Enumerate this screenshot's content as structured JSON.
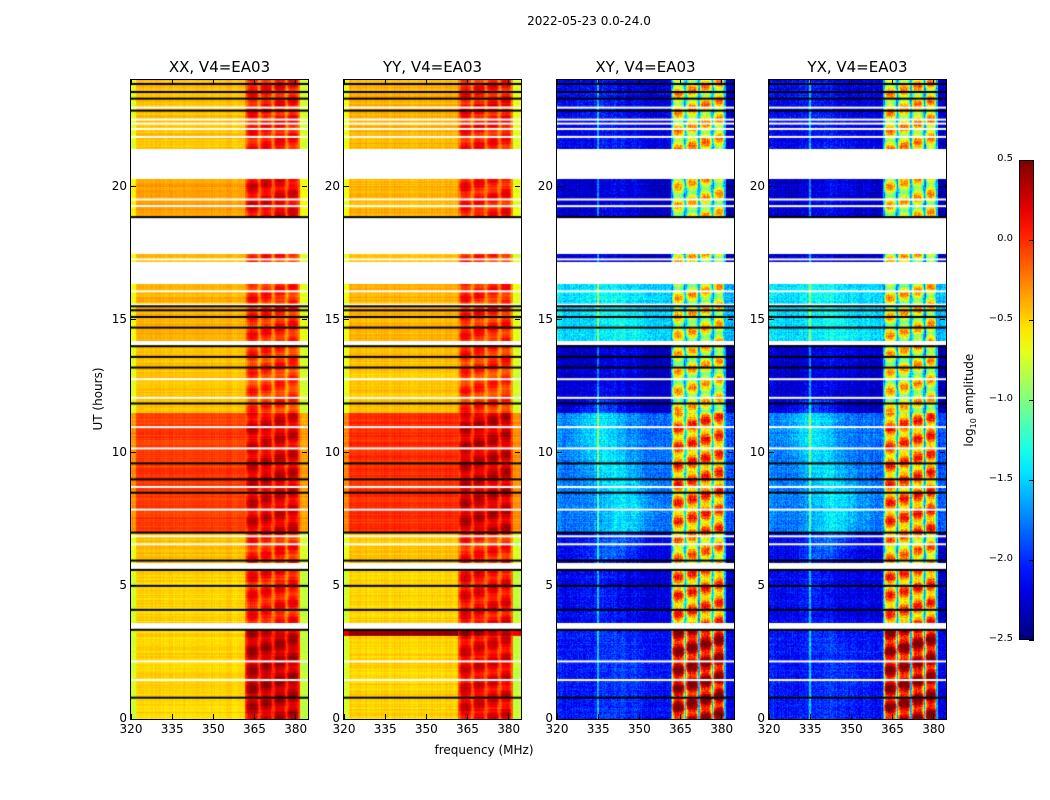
{
  "chart_data": {
    "type": "heatmap",
    "title": "2022-05-23 0.0-24.0",
    "xlabel": "frequency (MHz)",
    "ylabel": "UT (hours)",
    "xlim": [
      320,
      384.5
    ],
    "ylim": [
      0,
      24
    ],
    "x_ticks": [
      "320",
      "335",
      "350",
      "365",
      "380"
    ],
    "x_tick_values": [
      320,
      335,
      350,
      365,
      380
    ],
    "y_ticks": [
      "0",
      "5",
      "10",
      "15",
      "20"
    ],
    "y_tick_values": [
      0,
      5,
      10,
      15,
      20
    ],
    "colorbar": {
      "label_main": "log",
      "label_sub": "10",
      "label_rest": " amplitude",
      "range": [
        -2.5,
        0.5
      ],
      "ticks": [
        "0.5",
        "0.0",
        "−0.5",
        "−1.0",
        "−1.5",
        "−2.0",
        "−2.5"
      ],
      "tick_values": [
        0.5,
        0.0,
        -0.5,
        -1.0,
        -1.5,
        -2.0,
        -2.5
      ],
      "colormap": "jet"
    },
    "gaps_hours": [
      [
        3.35,
        3.6
      ],
      [
        5.65,
        5.85
      ],
      [
        14.05,
        14.2
      ],
      [
        16.35,
        17.15
      ],
      [
        17.45,
        18.85
      ],
      [
        20.3,
        21.4
      ]
    ],
    "flagged_black_lines_hours": [
      0.8,
      3.35,
      4.1,
      5.0,
      5.6,
      5.95,
      7.0,
      8.5,
      9.0,
      9.6,
      11.85,
      13.2,
      13.6,
      14.0,
      14.7,
      15.1,
      15.35,
      15.5,
      18.85,
      22.85,
      23.3,
      23.55,
      23.85
    ],
    "flagged_white_lines_hours": [
      1.5,
      2.2,
      6.6,
      6.9,
      7.9,
      8.75,
      10.2,
      11.0,
      12.1,
      12.8,
      15.6,
      16.1,
      17.3,
      19.3,
      19.55,
      21.9,
      22.2,
      22.4,
      22.55,
      23.0
    ],
    "high_band_channels_mhz": [
      [
        362,
        366.5
      ],
      [
        367,
        371.5
      ],
      [
        372,
        376.5
      ],
      [
        377,
        381
      ]
    ],
    "panels": [
      {
        "title": "XX, V4=EA03",
        "kind": "auto",
        "bands": [
          {
            "t": [
              0,
              3.35
            ],
            "low": -0.5,
            "high": 0.35
          },
          {
            "t": [
              3.6,
              5.65
            ],
            "low": -0.5,
            "high": 0.1
          },
          {
            "t": [
              5.85,
              7.0
            ],
            "low": -0.45,
            "high": 0.05
          },
          {
            "t": [
              7.0,
              11.5
            ],
            "low": -0.05,
            "high": 0.25
          },
          {
            "t": [
              11.5,
              14.05
            ],
            "low": -0.45,
            "high": 0.0
          },
          {
            "t": [
              14.2,
              16.35
            ],
            "low": -0.4,
            "high": 0.05
          },
          {
            "t": [
              17.15,
              17.45
            ],
            "low": -0.45,
            "high": 0.0
          },
          {
            "t": [
              18.85,
              20.3
            ],
            "low": -0.35,
            "high": 0.2
          },
          {
            "t": [
              21.4,
              24
            ],
            "low": -0.45,
            "high": 0.1
          }
        ]
      },
      {
        "title": "YY, V4=EA03",
        "kind": "auto",
        "bands": [
          {
            "t": [
              0,
              3.1
            ],
            "low": -0.5,
            "high": 0.2
          },
          {
            "t": [
              3.1,
              3.35
            ],
            "low": 0.45,
            "high": 0.45
          },
          {
            "t": [
              3.6,
              5.65
            ],
            "low": -0.5,
            "high": 0.15
          },
          {
            "t": [
              5.85,
              7.0
            ],
            "low": -0.45,
            "high": 0.05
          },
          {
            "t": [
              7.0,
              11.5
            ],
            "low": 0.0,
            "high": 0.3
          },
          {
            "t": [
              11.5,
              14.05
            ],
            "low": -0.45,
            "high": 0.0
          },
          {
            "t": [
              14.2,
              16.35
            ],
            "low": -0.4,
            "high": 0.05
          },
          {
            "t": [
              17.15,
              17.45
            ],
            "low": -0.45,
            "high": 0.0
          },
          {
            "t": [
              18.85,
              20.3
            ],
            "low": -0.4,
            "high": 0.1
          },
          {
            "t": [
              21.4,
              24
            ],
            "low": -0.4,
            "high": 0.1
          }
        ]
      },
      {
        "title": "XY, V4=EA03",
        "kind": "cross",
        "bands": [
          {
            "t": [
              0,
              3.35
            ],
            "low": -2.1,
            "high": 0.35
          },
          {
            "t": [
              3.6,
              5.65
            ],
            "low": -2.2,
            "high": -0.2
          },
          {
            "t": [
              5.85,
              7.0
            ],
            "low": -2.2,
            "high": -0.4
          },
          {
            "t": [
              7.0,
              11.5
            ],
            "low": -1.8,
            "high": -0.2
          },
          {
            "t": [
              11.5,
              14.05
            ],
            "low": -2.3,
            "high": -0.6
          },
          {
            "t": [
              14.2,
              16.35
            ],
            "low": -1.5,
            "high": -0.6
          },
          {
            "t": [
              17.15,
              17.45
            ],
            "low": -2.3,
            "high": -0.6
          },
          {
            "t": [
              18.85,
              20.3
            ],
            "low": -2.3,
            "high": -0.6
          },
          {
            "t": [
              21.4,
              24
            ],
            "low": -2.2,
            "high": -0.5
          }
        ]
      },
      {
        "title": "YX, V4=EA03",
        "kind": "cross",
        "bands": [
          {
            "t": [
              0,
              3.35
            ],
            "low": -2.1,
            "high": 0.35
          },
          {
            "t": [
              3.6,
              5.65
            ],
            "low": -2.2,
            "high": -0.2
          },
          {
            "t": [
              5.85,
              7.0
            ],
            "low": -2.2,
            "high": -0.4
          },
          {
            "t": [
              7.0,
              11.5
            ],
            "low": -1.8,
            "high": -0.2
          },
          {
            "t": [
              11.5,
              14.05
            ],
            "low": -2.3,
            "high": -0.6
          },
          {
            "t": [
              14.2,
              16.35
            ],
            "low": -1.5,
            "high": -0.6
          },
          {
            "t": [
              17.15,
              17.45
            ],
            "low": -2.3,
            "high": -0.6
          },
          {
            "t": [
              18.85,
              20.3
            ],
            "low": -2.3,
            "high": -0.6
          },
          {
            "t": [
              21.4,
              24
            ],
            "low": -2.2,
            "high": -0.5
          }
        ]
      }
    ]
  }
}
